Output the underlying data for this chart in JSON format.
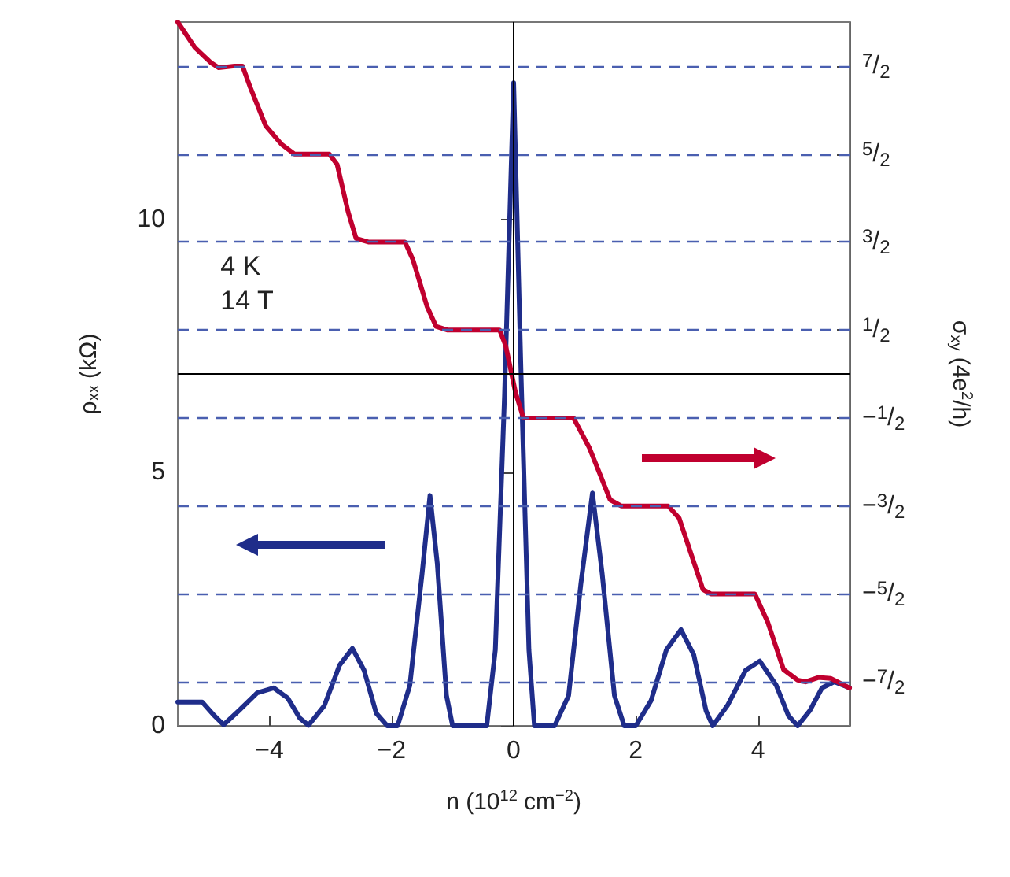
{
  "chart_data": {
    "type": "line",
    "xlabel": "n (10$^{12}$ cm$^{−2}$)",
    "ylabel": "ρ$_{xx}$ (kΩ)",
    "y2label": "σ$_{xy}$ (4e$^{2}$/h)",
    "annotations": [
      "4 K",
      "14 T"
    ],
    "xlim": [
      -5.5,
      5.5
    ],
    "xticks": [
      {
        "value": -4,
        "label": "−4"
      },
      {
        "value": -2,
        "label": "−2"
      },
      0,
      2,
      4
    ],
    "ylim": [
      0,
      13.9
    ],
    "yticks": [
      0,
      5,
      10
    ],
    "y2lim": [
      -4,
      4
    ],
    "y2ticks": [
      {
        "value": 3.5,
        "label": "7/2"
      },
      {
        "value": 2.5,
        "label": "5/2"
      },
      {
        "value": 1.5,
        "label": "3/2"
      },
      {
        "value": 0.5,
        "label": "1/2"
      },
      {
        "value": -0.5,
        "label": "−1/2"
      },
      {
        "value": -1.5,
        "label": "−3/2"
      },
      {
        "value": -2.5,
        "label": "−5/2"
      },
      {
        "value": -3.5,
        "label": "−7/2"
      }
    ],
    "grid": false,
    "marker": "none",
    "line_style": "solid",
    "series": [
      {
        "color": "#1f2d8a",
        "x": [
          -5.5,
          -5.1,
          -4.9,
          -4.75,
          -4.5,
          -4.2,
          -3.93,
          -3.7,
          -3.5,
          -3.36,
          -3.1,
          -2.85,
          -2.64,
          -2.45,
          -2.25,
          -2.07,
          -1.9,
          -1.7,
          -1.5,
          -1.37,
          -1.25,
          -1.1,
          -1.0,
          -0.44,
          -0.3,
          -0.15,
          0,
          0.12,
          0.25,
          0.34,
          0.67,
          0.9,
          1.1,
          1.29,
          1.45,
          1.65,
          1.81,
          2.0,
          2.25,
          2.5,
          2.74,
          2.95,
          3.15,
          3.26,
          3.5,
          3.8,
          4.03,
          4.3,
          4.5,
          4.65,
          4.85,
          5.05,
          5.25,
          5.5
        ],
        "values": [
          0.47,
          0.47,
          0.2,
          0.02,
          0.3,
          0.65,
          0.75,
          0.55,
          0.15,
          0.01,
          0.4,
          1.2,
          1.53,
          1.1,
          0.25,
          0,
          0,
          0.8,
          3.0,
          4.55,
          3.2,
          0.6,
          0,
          0,
          1.5,
          6.5,
          12.7,
          7,
          1.5,
          0,
          0,
          0.6,
          2.8,
          4.6,
          3.0,
          0.6,
          0,
          0,
          0.5,
          1.5,
          1.9,
          1.4,
          0.3,
          0,
          0.4,
          1.1,
          1.28,
          0.8,
          0.2,
          0,
          0.3,
          0.75,
          0.87,
          0.75
        ]
      },
      {
        "color": "#c0002f",
        "axis": "y2",
        "x": [
          -5.5,
          -5.22,
          -4.96,
          -4.83,
          -4.57,
          -4.44,
          -4.32,
          -4.06,
          -3.8,
          -3.59,
          -3.02,
          -2.89,
          -2.71,
          -2.58,
          -2.38,
          -1.78,
          -1.65,
          -1.42,
          -1.27,
          -1.09,
          -0.23,
          -0.13,
          0.03,
          0.16,
          0.98,
          1.24,
          1.58,
          1.76,
          2.53,
          2.71,
          3.1,
          3.23,
          3.95,
          4.16,
          4.42,
          4.65,
          4.78,
          4.99,
          5.19,
          5.5
        ],
        "values": [
          4.0,
          3.71,
          3.54,
          3.48,
          3.5,
          3.5,
          3.27,
          2.82,
          2.61,
          2.5,
          2.5,
          2.38,
          1.84,
          1.54,
          1.5,
          1.5,
          1.3,
          0.77,
          0.54,
          0.5,
          0.5,
          0.32,
          -0.21,
          -0.5,
          -0.5,
          -0.84,
          -1.43,
          -1.5,
          -1.5,
          -1.64,
          -2.45,
          -2.5,
          -2.5,
          -2.82,
          -3.36,
          -3.48,
          -3.5,
          -3.45,
          -3.46,
          -3.57
        ]
      }
    ],
    "ref_lines": [
      {
        "axis": "y2",
        "value": 3.5,
        "color": "#4a5fb0",
        "line_style": "dashed"
      },
      {
        "axis": "y2",
        "value": 2.5,
        "color": "#4a5fb0",
        "line_style": "dashed"
      },
      {
        "axis": "y2",
        "value": 1.5,
        "color": "#4a5fb0",
        "line_style": "dashed"
      },
      {
        "axis": "y2",
        "value": 0.5,
        "color": "#4a5fb0",
        "line_style": "dashed"
      },
      {
        "axis": "y2",
        "value": -0.5,
        "color": "#4a5fb0",
        "line_style": "dashed"
      },
      {
        "axis": "y2",
        "value": -1.5,
        "color": "#4a5fb0",
        "line_style": "dashed"
      },
      {
        "axis": "y2",
        "value": -2.5,
        "color": "#4a5fb0",
        "line_style": "dashed"
      },
      {
        "axis": "y2",
        "value": -3.5,
        "color": "#4a5fb0",
        "line_style": "dashed"
      },
      {
        "axis": "y2",
        "value": 0,
        "color": "#000000",
        "line_style": "solid"
      },
      {
        "axis": "x",
        "value": 0,
        "color": "#000000",
        "line_style": "solid"
      }
    ]
  }
}
